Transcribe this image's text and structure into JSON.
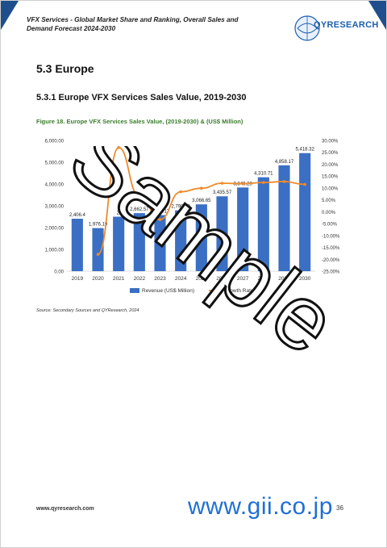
{
  "header": {
    "title": "VFX Services - Global Market Share and Ranking, Overall Sales and Demand Forecast 2024-2030"
  },
  "logo": {
    "text": "QYRESEARCH"
  },
  "section": {
    "number_title": "5.3  Europe",
    "sub_title": "5.3.1  Europe VFX Services Sales Value, 2019-2030"
  },
  "figure": {
    "caption": "Figure 18.   Europe VFX Services Sales Value, (2019-2030) & (US$ Million)"
  },
  "source": "Source: Secondary Sources and QYResearch, 2024",
  "footer": {
    "url": "www.qyresearch.com",
    "page": "36"
  },
  "gii": {
    "text": "www.gii.co.jp"
  },
  "watermark": {
    "text": "Sample"
  },
  "chart_data": {
    "type": "bar",
    "categories": [
      "2019",
      "2020",
      "2021",
      "2022",
      "2023",
      "2024",
      "2025",
      "2026",
      "2027",
      "2028",
      "2029",
      "2030"
    ],
    "series": [
      {
        "name": "Revenue (US$ Million)",
        "kind": "bar",
        "color": "#3a6fc4",
        "values": [
          2406.4,
          1976.19,
          2500.0,
          2662.57,
          2574.17,
          2790.4,
          3066.65,
          3435.57,
          3840.28,
          4310.71,
          4858.17,
          5418.32
        ],
        "labels": [
          "2,406.4",
          "1,976.19",
          "2,",
          "2,662.57",
          "2,574.17",
          "2,790.40",
          "3,066.65",
          "3,435.57",
          "3,840.28",
          "4,310.71",
          "4,858.17",
          "5,418.32"
        ]
      },
      {
        "name": "Growth Rate",
        "kind": "line",
        "color": "#f08a2a",
        "values": [
          null,
          -17.9,
          27.0,
          6.5,
          -3.3,
          8.4,
          9.9,
          12.0,
          11.8,
          12.3,
          12.7,
          11.5
        ]
      }
    ],
    "left_axis": {
      "ticks": [
        "0.00",
        "1,000.00",
        "2,000.00",
        "3,000.00",
        "4,000.00",
        "5,000.00",
        "6,000.00"
      ],
      "ylim": [
        0,
        6000
      ]
    },
    "right_axis": {
      "ticks": [
        "-25.00%",
        "-20.00%",
        "-15.00%",
        "-10.00%",
        "-5.00%",
        "0.00%",
        "5.00%",
        "10.00%",
        "15.00%",
        "20.00%",
        "25.00%",
        "30.00%"
      ],
      "ylim": [
        -25,
        30
      ]
    },
    "legend_position": "bottom",
    "legend": [
      "Revenue (US$ Million)",
      "Growth Rate"
    ]
  }
}
